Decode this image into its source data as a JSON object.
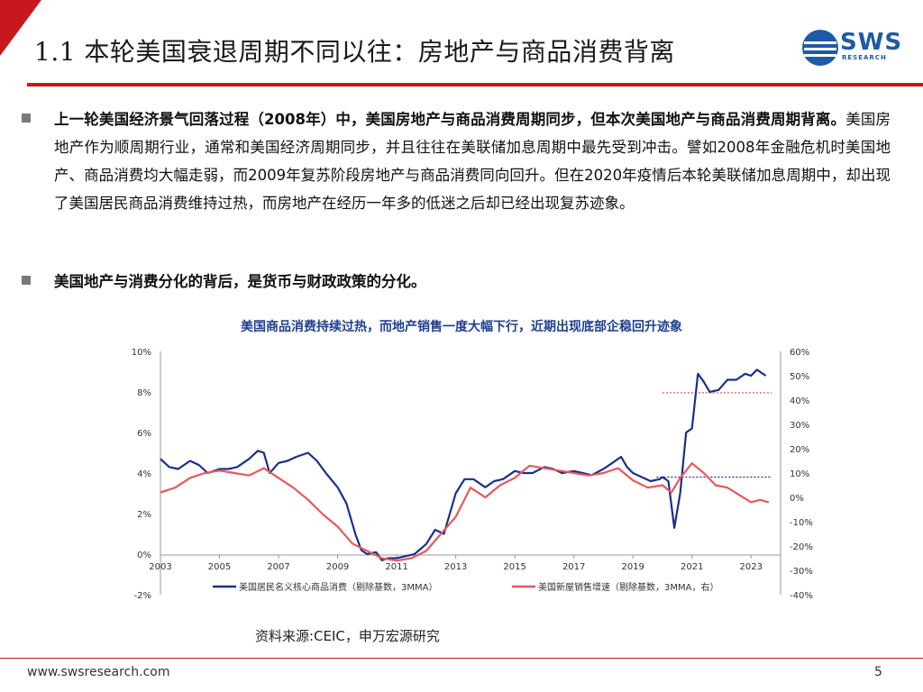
{
  "slide": {
    "title": "1.1 本轮美国衰退周期不同以往：房地产与商品消费背离",
    "logo": {
      "text": "SWS",
      "sub": "RESEARCH"
    },
    "bullets": [
      {
        "bold": "上一轮美国经济景气回落过程（2008年）中，美国房地产与商品消费周期同步，但本次美国地产与商品消费周期背离。",
        "text": "美国房地产作为顺周期行业，通常和美国经济周期同步，并且往往在美联储加息周期中最先受到冲击。譬如2008年金融危机时美国地产、商品消费均大幅走弱，而2009年复苏阶段房地产与商品消费同向回升。但在2020年疫情后本轮美联储加息周期中，却出现了美国居民商品消费维持过热，而房地产在经历一年多的低迷之后却已经出现复苏迹象。"
      },
      {
        "bold": "美国地产与消费分化的背后，是货币与财政政策的分化。",
        "text": ""
      }
    ],
    "source": "资料来源:CEIC，申万宏源研究",
    "footer_url": "www.swsresearch.com",
    "page_number": "5"
  },
  "chart_data": {
    "type": "line",
    "title": "美国商品消费持续过热，而地产销售一度大幅下行，近期出现底部企稳回升迹象",
    "x_ticks": [
      "2003",
      "2005",
      "2007",
      "2009",
      "2011",
      "2013",
      "2015",
      "2017",
      "2019",
      "2021",
      "2023"
    ],
    "x_range": [
      2003,
      2024
    ],
    "left_axis": {
      "ticks": [
        "10%",
        "8%",
        "6%",
        "4%",
        "2%",
        "0%",
        "-2%"
      ],
      "range": [
        -2,
        10
      ]
    },
    "right_axis": {
      "ticks": [
        "60%",
        "50%",
        "40%",
        "30%",
        "20%",
        "10%",
        "0%",
        "-10%",
        "-20%",
        "-30%",
        "-40%"
      ],
      "range": [
        -40,
        60
      ]
    },
    "grid": false,
    "legend_position": "bottom",
    "colors": {
      "blue": "#1b2f8a",
      "red": "#e8585a"
    },
    "series": [
      {
        "name": "美国居民名义核心商品消费（剔除基数，3MMA）",
        "axis": "left",
        "color": "#1b2f8a",
        "points": [
          [
            2003.0,
            4.7
          ],
          [
            2003.3,
            4.3
          ],
          [
            2003.6,
            4.2
          ],
          [
            2004.0,
            4.6
          ],
          [
            2004.3,
            4.4
          ],
          [
            2004.6,
            4.0
          ],
          [
            2005.0,
            4.2
          ],
          [
            2005.3,
            4.2
          ],
          [
            2005.6,
            4.3
          ],
          [
            2006.0,
            4.7
          ],
          [
            2006.3,
            5.1
          ],
          [
            2006.5,
            5.0
          ],
          [
            2006.7,
            4.0
          ],
          [
            2007.0,
            4.5
          ],
          [
            2007.3,
            4.6
          ],
          [
            2007.6,
            4.8
          ],
          [
            2008.0,
            5.0
          ],
          [
            2008.3,
            4.6
          ],
          [
            2008.6,
            4.0
          ],
          [
            2009.0,
            3.3
          ],
          [
            2009.3,
            2.5
          ],
          [
            2009.6,
            1.0
          ],
          [
            2009.8,
            0.2
          ],
          [
            2010.0,
            0.0
          ],
          [
            2010.3,
            0.1
          ],
          [
            2010.5,
            -0.3
          ],
          [
            2010.7,
            -0.2
          ],
          [
            2011.0,
            -0.2
          ],
          [
            2011.3,
            -0.1
          ],
          [
            2011.6,
            0.0
          ],
          [
            2012.0,
            0.5
          ],
          [
            2012.3,
            1.2
          ],
          [
            2012.6,
            1.0
          ],
          [
            2013.0,
            3.0
          ],
          [
            2013.3,
            3.7
          ],
          [
            2013.6,
            3.7
          ],
          [
            2014.0,
            3.3
          ],
          [
            2014.3,
            3.6
          ],
          [
            2014.6,
            3.7
          ],
          [
            2015.0,
            4.1
          ],
          [
            2015.3,
            4.0
          ],
          [
            2015.6,
            4.0
          ],
          [
            2016.0,
            4.3
          ],
          [
            2016.3,
            4.2
          ],
          [
            2016.6,
            4.0
          ],
          [
            2017.0,
            4.1
          ],
          [
            2017.3,
            4.0
          ],
          [
            2017.6,
            3.9
          ],
          [
            2018.0,
            4.2
          ],
          [
            2018.3,
            4.5
          ],
          [
            2018.6,
            4.8
          ],
          [
            2018.8,
            4.3
          ],
          [
            2019.0,
            4.0
          ],
          [
            2019.3,
            3.8
          ],
          [
            2019.6,
            3.6
          ],
          [
            2019.9,
            3.7
          ],
          [
            2020.0,
            3.8
          ],
          [
            2020.2,
            3.6
          ],
          [
            2020.4,
            1.3
          ],
          [
            2020.6,
            3.0
          ],
          [
            2020.8,
            6.0
          ],
          [
            2021.0,
            6.2
          ],
          [
            2021.2,
            8.9
          ],
          [
            2021.4,
            8.5
          ],
          [
            2021.6,
            8.0
          ],
          [
            2021.9,
            8.1
          ],
          [
            2022.2,
            8.6
          ],
          [
            2022.5,
            8.6
          ],
          [
            2022.8,
            8.9
          ],
          [
            2023.0,
            8.8
          ],
          [
            2023.2,
            9.1
          ],
          [
            2023.5,
            8.8
          ]
        ]
      },
      {
        "name": "美国新屋销售增速（剔除基数，3MMA，右）",
        "axis": "right",
        "color": "#e8585a",
        "points": [
          [
            2003.0,
            2
          ],
          [
            2003.5,
            4
          ],
          [
            2004.0,
            8
          ],
          [
            2004.5,
            10
          ],
          [
            2005.0,
            11
          ],
          [
            2005.5,
            10
          ],
          [
            2006.0,
            9
          ],
          [
            2006.5,
            12
          ],
          [
            2007.0,
            8
          ],
          [
            2007.5,
            4
          ],
          [
            2008.0,
            -1
          ],
          [
            2008.5,
            -7
          ],
          [
            2009.0,
            -12
          ],
          [
            2009.5,
            -19
          ],
          [
            2010.0,
            -22
          ],
          [
            2010.5,
            -25
          ],
          [
            2011.0,
            -26
          ],
          [
            2011.5,
            -25
          ],
          [
            2012.0,
            -22
          ],
          [
            2012.5,
            -15
          ],
          [
            2013.0,
            -8
          ],
          [
            2013.5,
            4
          ],
          [
            2014.0,
            0
          ],
          [
            2014.5,
            5
          ],
          [
            2015.0,
            8
          ],
          [
            2015.5,
            13
          ],
          [
            2016.0,
            12
          ],
          [
            2016.5,
            11
          ],
          [
            2017.0,
            10
          ],
          [
            2017.5,
            9
          ],
          [
            2018.0,
            10
          ],
          [
            2018.5,
            12
          ],
          [
            2019.0,
            7
          ],
          [
            2019.5,
            4
          ],
          [
            2020.0,
            5
          ],
          [
            2020.3,
            2
          ],
          [
            2020.6,
            8
          ],
          [
            2021.0,
            14
          ],
          [
            2021.4,
            10
          ],
          [
            2021.8,
            5
          ],
          [
            2022.2,
            4
          ],
          [
            2022.6,
            1
          ],
          [
            2023.0,
            -2
          ],
          [
            2023.3,
            -1
          ],
          [
            2023.6,
            -2
          ]
        ]
      }
    ],
    "reference_lines": [
      {
        "axis": "right",
        "value": 43,
        "x_from": 2020.0,
        "x_to": 2023.7,
        "color": "#e8585a",
        "style": "dotted"
      },
      {
        "axis": "left",
        "value": 3.8,
        "x_from": 2019.8,
        "x_to": 2023.7,
        "color": "#1b2f8a",
        "style": "dotted"
      }
    ]
  }
}
